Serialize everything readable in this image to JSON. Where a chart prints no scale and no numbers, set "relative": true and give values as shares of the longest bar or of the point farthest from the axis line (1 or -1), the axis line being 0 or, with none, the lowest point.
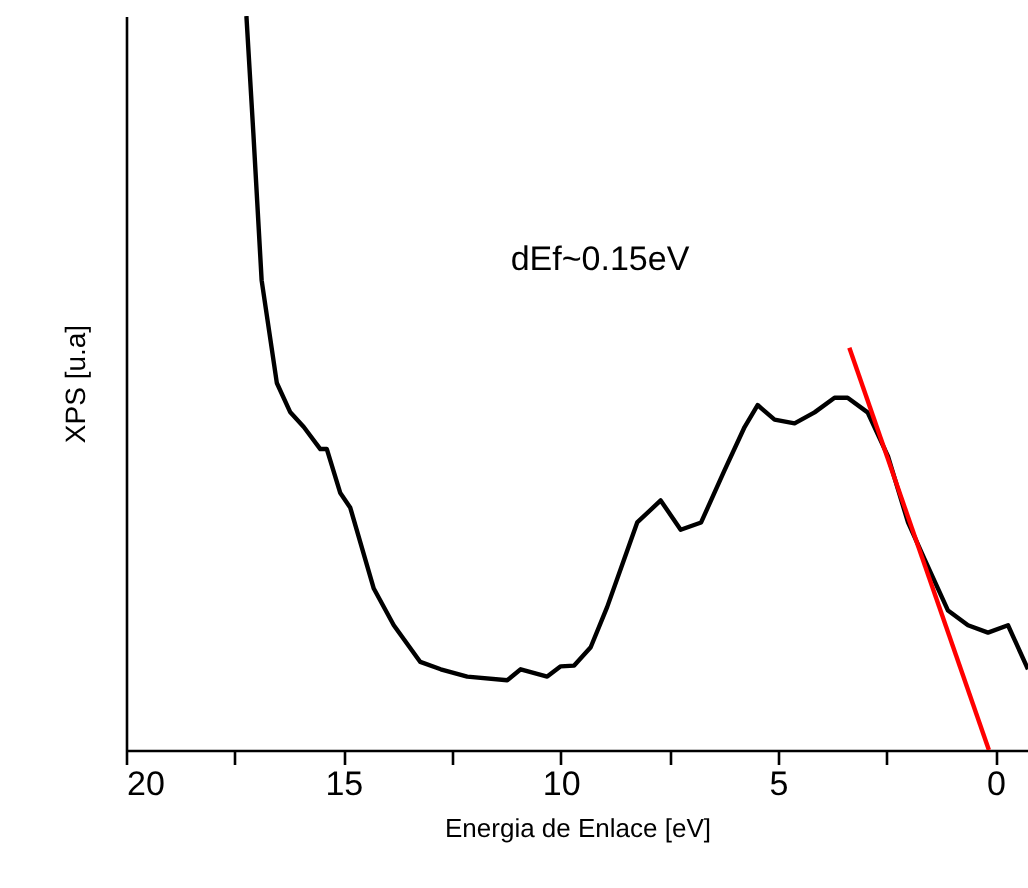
{
  "chart_data": {
    "type": "line",
    "relative": true,
    "xlabel": "Energia de Enlace [eV]",
    "ylabel": "XPS [u.a]",
    "annotations": [
      "dEf~0.15eV"
    ],
    "xlim": [
      20,
      -0.75
    ],
    "xticks": [
      20,
      {
        "value": 17.5,
        "label": null
      },
      15,
      {
        "value": 12.5,
        "label": null
      },
      10,
      {
        "value": 7.5,
        "label": null
      },
      5,
      {
        "value": 2.5,
        "label": null
      },
      0
    ],
    "line_style": "solid",
    "series": [
      {
        "color": "#000000",
        "x": [
          17.23,
          17.07,
          16.88,
          16.53,
          16.22,
          15.91,
          15.53,
          15.38,
          15.07,
          14.84,
          14.3,
          13.84,
          13.23,
          12.76,
          12.15,
          11.23,
          10.92,
          10.31,
          10.0,
          9.69,
          9.31,
          8.93,
          8.54,
          8.24,
          7.7,
          7.24,
          6.77,
          6.24,
          5.77,
          5.47,
          5.08,
          4.62,
          4.16,
          3.7,
          3.4,
          2.94,
          2.47,
          2.01,
          1.63,
          1.09,
          0.63,
          0.17,
          -0.29,
          -0.75
        ],
        "values": [
          1.0,
          0.84,
          0.64,
          0.5,
          0.46,
          0.44,
          0.41,
          0.41,
          0.35,
          0.33,
          0.22,
          0.17,
          0.12,
          0.11,
          0.1,
          0.095,
          0.11,
          0.1,
          0.114,
          0.115,
          0.14,
          0.195,
          0.26,
          0.31,
          0.34,
          0.3,
          0.31,
          0.38,
          0.44,
          0.47,
          0.45,
          0.445,
          0.46,
          0.48,
          0.48,
          0.46,
          0.4,
          0.31,
          0.26,
          0.19,
          0.17,
          0.16,
          0.17,
          0.11
        ]
      },
      {
        "color": "#ff0000",
        "x": [
          3.36,
          0.15
        ],
        "values": [
          0.548,
          0
        ]
      }
    ]
  }
}
